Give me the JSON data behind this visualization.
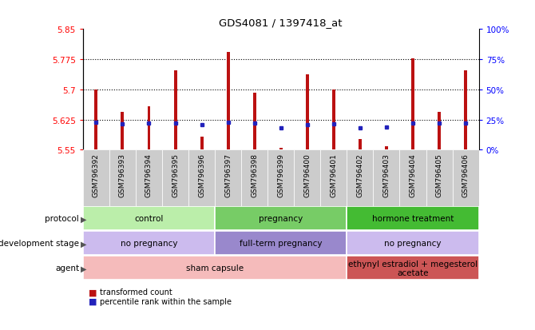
{
  "title": "GDS4081 / 1397418_at",
  "samples": [
    "GSM796392",
    "GSM796393",
    "GSM796394",
    "GSM796395",
    "GSM796396",
    "GSM796397",
    "GSM796398",
    "GSM796399",
    "GSM796400",
    "GSM796401",
    "GSM796402",
    "GSM796403",
    "GSM796404",
    "GSM796405",
    "GSM796406"
  ],
  "bar_values": [
    5.7,
    5.645,
    5.658,
    5.748,
    5.582,
    5.793,
    5.692,
    5.554,
    5.738,
    5.7,
    5.576,
    5.558,
    5.778,
    5.645,
    5.748
  ],
  "percentile_values": [
    5.619,
    5.614,
    5.616,
    5.617,
    5.613,
    5.618,
    5.617,
    5.605,
    5.613,
    5.614,
    5.604,
    5.606,
    5.617,
    5.616,
    5.617
  ],
  "ymin": 5.55,
  "ymax": 5.85,
  "yticks": [
    5.55,
    5.625,
    5.7,
    5.775,
    5.85
  ],
  "right_yticks": [
    0,
    25,
    50,
    75,
    100
  ],
  "dotted_lines": [
    5.625,
    5.7,
    5.775
  ],
  "bar_color": "#bb1111",
  "percentile_color": "#2222bb",
  "chart_bg": "#ffffff",
  "tick_bg": "#cccccc",
  "protocol_groups": [
    {
      "label": "control",
      "start": 0,
      "end": 4,
      "color": "#bbeeaa"
    },
    {
      "label": "pregnancy",
      "start": 5,
      "end": 9,
      "color": "#77cc66"
    },
    {
      "label": "hormone treatment",
      "start": 10,
      "end": 14,
      "color": "#44bb33"
    }
  ],
  "dev_stage_groups": [
    {
      "label": "no pregnancy",
      "start": 0,
      "end": 4,
      "color": "#ccbbee"
    },
    {
      "label": "full-term pregnancy",
      "start": 5,
      "end": 9,
      "color": "#9988cc"
    },
    {
      "label": "no pregnancy",
      "start": 10,
      "end": 14,
      "color": "#ccbbee"
    }
  ],
  "agent_groups": [
    {
      "label": "sham capsule",
      "start": 0,
      "end": 9,
      "color": "#f5bbbb"
    },
    {
      "label": "ethynyl estradiol + megesterol\nacetate",
      "start": 10,
      "end": 14,
      "color": "#cc5555"
    }
  ],
  "row_labels": [
    "protocol",
    "development stage",
    "agent"
  ],
  "legend_items": [
    {
      "color": "#bb1111",
      "label": "transformed count"
    },
    {
      "color": "#2222bb",
      "label": "percentile rank within the sample"
    }
  ]
}
